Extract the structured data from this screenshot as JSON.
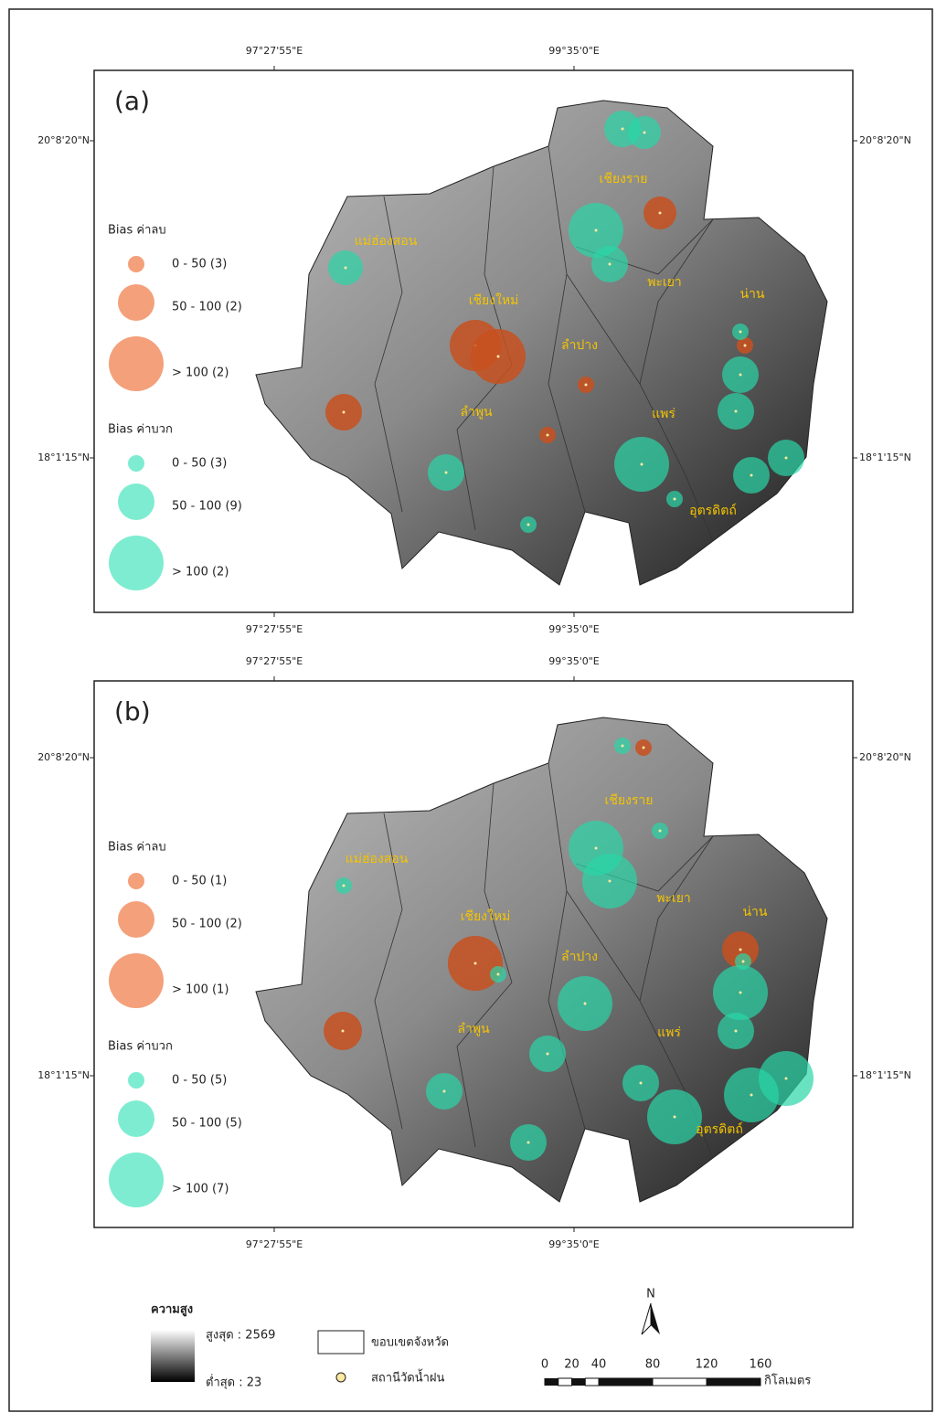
{
  "graticule": {
    "lon": [
      "97°27'55\"E",
      "99°35'0\"E"
    ],
    "lat": [
      "20°8'20\"N",
      "18°1'15\"N"
    ]
  },
  "provinces": [
    "แม่ฮ่องสอน",
    "เชียงใหม่",
    "เชียงราย",
    "พะเยา",
    "น่าน",
    "ลำปาง",
    "ลำพูน",
    "แพร่",
    "อุตรดิตถ์"
  ],
  "panels": [
    {
      "label": "(a)",
      "negative": {
        "title": "Bias ค่าลบ",
        "classes": [
          "0 - 50 (3)",
          "50 - 100 (2)",
          "> 100 (2)"
        ]
      },
      "positive": {
        "title": "Bias ค่าบวก",
        "classes": [
          "0 - 50 (3)",
          "50 - 100 (9)",
          "> 100 (2)"
        ]
      }
    },
    {
      "label": "(b)",
      "negative": {
        "title": "Bias ค่าลบ",
        "classes": [
          "0 - 50 (1)",
          "50 - 100 (2)",
          "> 100 (1)"
        ]
      },
      "positive": {
        "title": "Bias ค่าบวก",
        "classes": [
          "0 - 50 (5)",
          "50 - 100 (5)",
          "> 100 (7)"
        ]
      }
    }
  ],
  "legend": {
    "elevation_title": "ความสูง",
    "max": "สูงสุด : 2569",
    "min": "ต่ำสุด : 23",
    "boundary": "ขอบเขตจังหวัด",
    "station": "สถานีวัดน้ำฝน",
    "north": "N",
    "scale_ticks": [
      0,
      20,
      40,
      80,
      120,
      160
    ],
    "scale_unit": "กิโลเมตร"
  }
}
